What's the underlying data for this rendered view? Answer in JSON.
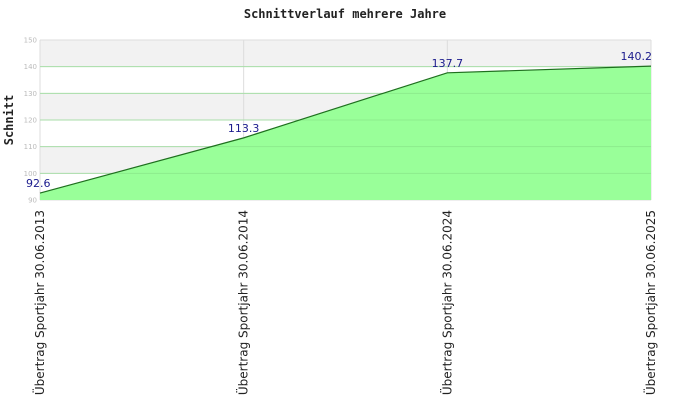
{
  "chart_data": {
    "type": "area",
    "title": "Schnittverlauf mehrere Jahre",
    "xlabel": "",
    "ylabel": "Schnitt",
    "categories": [
      "Übertrag Sportjahr 30.06.2013",
      "Übertrag Sportjahr 30.06.2014",
      "Übertrag Sportjahr 30.06.2024",
      "Übertrag Sportjahr 30.06.2025"
    ],
    "values": [
      92.6,
      113.3,
      137.7,
      140.2
    ],
    "data_labels": [
      "92.6",
      "113.3",
      "137.7",
      "140.2"
    ],
    "ylim": [
      90,
      150
    ],
    "yticks": [
      90,
      100,
      110,
      120,
      130,
      140,
      150
    ],
    "ytick_labels": [
      "90",
      "100",
      "110",
      "120",
      "130",
      "140",
      "150"
    ],
    "grid": true,
    "legend": "none"
  },
  "colors": {
    "area_fill": "#99ff99",
    "area_line": "#1f6f1f",
    "band_alt": "#f2f2f2",
    "grid": "#dddddd",
    "data_label": "#1a1a8c"
  }
}
